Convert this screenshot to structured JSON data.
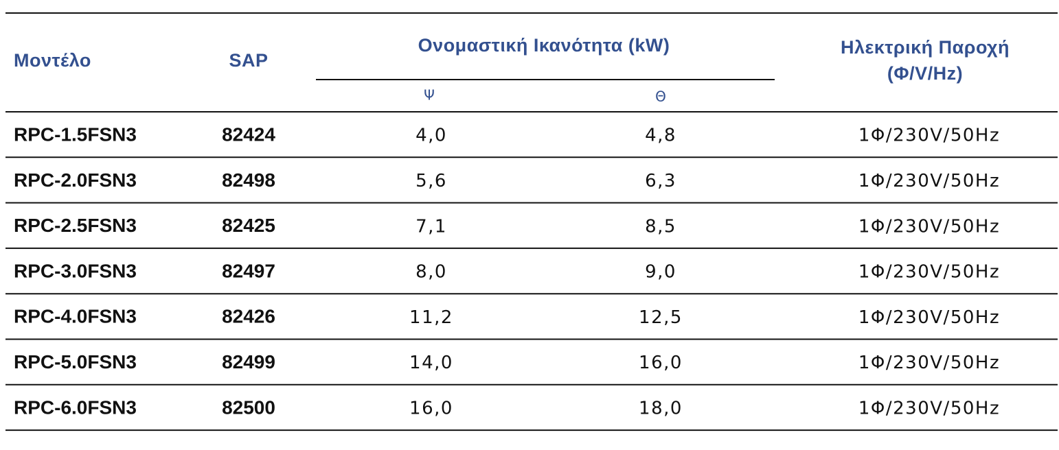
{
  "table": {
    "header": {
      "model": "Μοντέλο",
      "sap": "SAP",
      "capacity": "Ονομαστική Ικανότητα (kW)",
      "cooling": "Ψ",
      "heating": "Θ",
      "power": [
        "Ηλεκτρική Παροχή",
        "(Φ/V/Hz)"
      ]
    },
    "rows": [
      [
        "RPC-1.5FSN3",
        "82424",
        "4,0",
        "4,8",
        "1Φ/230V/50Hz"
      ],
      [
        "RPC-2.0FSN3",
        "82498",
        "5,6",
        "6,3",
        "1Φ/230V/50Hz"
      ],
      [
        "RPC-2.5FSN3",
        "82425",
        "7,1",
        "8,5",
        "1Φ/230V/50Hz"
      ],
      [
        "RPC-3.0FSN3",
        "82497",
        "8,0",
        "9,0",
        "1Φ/230V/50Hz"
      ],
      [
        "RPC-4.0FSN3",
        "82426",
        "11,2",
        "12,5",
        "1Φ/230V/50Hz"
      ],
      [
        "RPC-5.0FSN3",
        "82499",
        "14,0",
        "16,0",
        "1Φ/230V/50Hz"
      ],
      [
        "RPC-6.0FSN3",
        "82500",
        "16,0",
        "18,0",
        "1Φ/230V/50Hz"
      ]
    ]
  }
}
